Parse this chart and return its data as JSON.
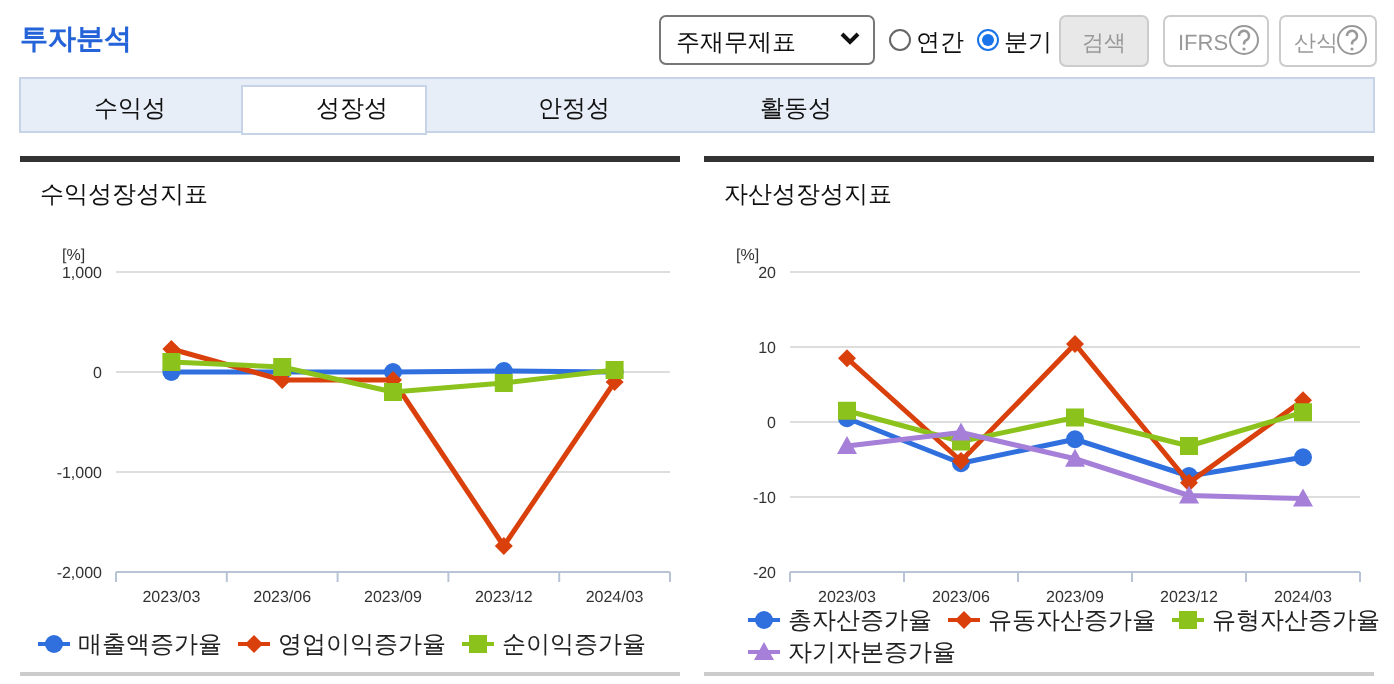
{
  "chart_data": [
    {
      "type": "other",
      "title": "투자분석",
      "annotations": [
        "주재무제표",
        "연간",
        "분기",
        "검색",
        "IFRS",
        "산식",
        "수익성",
        "성장성",
        "안정성",
        "활동성"
      ]
    },
    {
      "type": "line",
      "title": "수익성장성지표",
      "ylabel": "[%]",
      "categories": [
        "2023/03",
        "2023/06",
        "2023/09",
        "2023/12",
        "2024/03"
      ],
      "ylim": [
        -2000,
        1000
      ],
      "yticks": [
        {
          "value": -2000,
          "label": "-2,000"
        },
        {
          "value": -1000,
          "label": "-1,000"
        },
        0,
        {
          "value": 1000,
          "label": "1,000"
        }
      ],
      "grid": "y",
      "legend": "bottom",
      "series": [
        {
          "name": "매출액증가율",
          "color": "#2f6fde",
          "marker": "circle",
          "values": [
            0,
            0,
            0,
            10,
            0
          ]
        },
        {
          "name": "영업이익증가율",
          "color": "#d9400b",
          "marker": "diamond",
          "values": [
            230,
            -80,
            -80,
            -1740,
            -100
          ]
        },
        {
          "name": "순이익증가율",
          "color": "#8cc21c",
          "marker": "square",
          "values": [
            100,
            50,
            -200,
            -110,
            20
          ]
        }
      ]
    },
    {
      "type": "line",
      "title": "자산성장성지표",
      "ylabel": "[%]",
      "categories": [
        "2023/03",
        "2023/06",
        "2023/09",
        "2023/12",
        "2024/03"
      ],
      "ylim": [
        -20,
        20
      ],
      "yticks": [
        -20,
        -10,
        0,
        10,
        20
      ],
      "grid": "y",
      "legend": "bottom",
      "series": [
        {
          "name": "총자산증가율",
          "color": "#2f6fde",
          "marker": "circle",
          "values": [
            0.5,
            -5.5,
            -2.3,
            -7.2,
            -4.7
          ]
        },
        {
          "name": "유동자산증가율",
          "color": "#d9400b",
          "marker": "diamond",
          "values": [
            8.5,
            -5.2,
            10.4,
            -8.1,
            2.9
          ]
        },
        {
          "name": "유형자산증가율",
          "color": "#8cc21c",
          "marker": "square",
          "values": [
            1.5,
            -2.6,
            0.6,
            -3.2,
            1.3
          ]
        },
        {
          "name": "자기자본증가율",
          "color": "#a57fd8",
          "marker": "triangle",
          "values": [
            -3.2,
            -1.4,
            -4.9,
            -9.8,
            -10.2
          ]
        }
      ]
    }
  ]
}
